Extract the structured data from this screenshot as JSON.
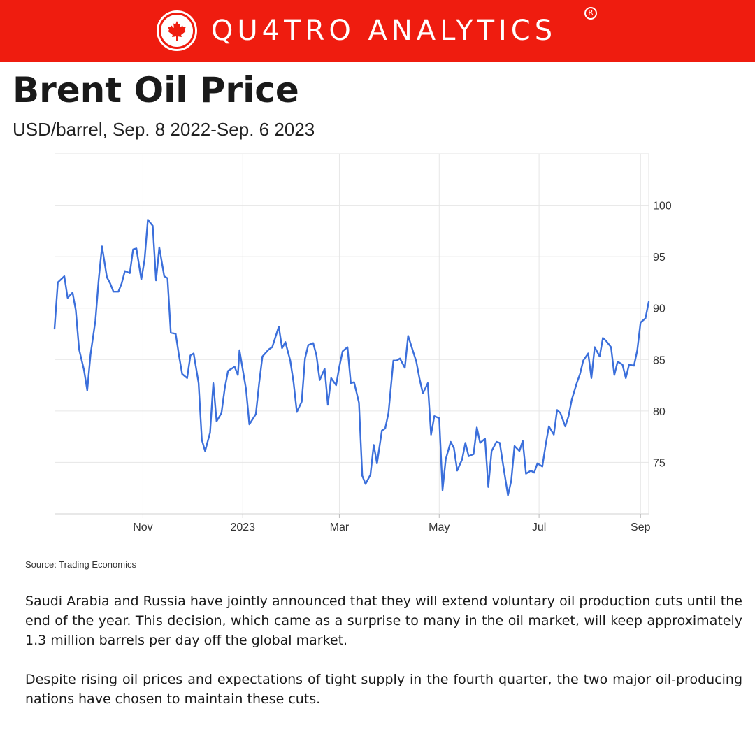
{
  "brand": {
    "name": "QU4TRO ANALYTICS",
    "registered_mark": "R",
    "accent_color": "#ef1c0f"
  },
  "title": "Brent Oil Price",
  "subtitle": "USD/barrel, Sep. 8 2022-Sep. 6 2023",
  "source": "Source: Trading Economics",
  "paragraphs": [
    "Saudi Arabia and Russia have jointly announced that they will extend voluntary oil production cuts until the end of the year. This decision, which came as a surprise to many in the oil market, will keep approximately 1.3 million barrels per day off the global market.",
    "Despite rising oil prices and expectations of tight supply in the fourth quarter, the two major oil-producing nations have chosen to maintain these cuts."
  ],
  "chart_data": {
    "type": "line",
    "x_range": [
      "2022-09-08",
      "2023-09-06"
    ],
    "ylim": [
      70,
      105
    ],
    "y_ticks": [
      75,
      80,
      85,
      90,
      95,
      100
    ],
    "x_ticks": [
      {
        "date": "2022-11-01",
        "label": "Nov"
      },
      {
        "date": "2023-01-01",
        "label": "2023"
      },
      {
        "date": "2023-03-01",
        "label": "Mar"
      },
      {
        "date": "2023-05-01",
        "label": "May"
      },
      {
        "date": "2023-07-01",
        "label": "Jul"
      },
      {
        "date": "2023-09-01",
        "label": "Sep"
      }
    ],
    "grid": true,
    "y_axis_side": "right",
    "line_color": "#3b6fdb",
    "series": [
      {
        "points": [
          [
            "2022-09-08",
            88.0
          ],
          [
            "2022-09-10",
            92.5
          ],
          [
            "2022-09-12",
            92.8
          ],
          [
            "2022-09-14",
            93.1
          ],
          [
            "2022-09-16",
            91.0
          ],
          [
            "2022-09-19",
            91.5
          ],
          [
            "2022-09-21",
            89.8
          ],
          [
            "2022-09-23",
            86.0
          ],
          [
            "2022-09-26",
            84.0
          ],
          [
            "2022-09-28",
            82.0
          ],
          [
            "2022-09-30",
            85.5
          ],
          [
            "2022-10-03",
            88.8
          ],
          [
            "2022-10-05",
            92.8
          ],
          [
            "2022-10-07",
            96.0
          ],
          [
            "2022-10-10",
            93.0
          ],
          [
            "2022-10-12",
            92.4
          ],
          [
            "2022-10-14",
            91.6
          ],
          [
            "2022-10-17",
            91.6
          ],
          [
            "2022-10-19",
            92.4
          ],
          [
            "2022-10-21",
            93.6
          ],
          [
            "2022-10-24",
            93.4
          ],
          [
            "2022-10-26",
            95.7
          ],
          [
            "2022-10-28",
            95.8
          ],
          [
            "2022-10-31",
            92.8
          ],
          [
            "2022-11-02",
            94.7
          ],
          [
            "2022-11-04",
            98.6
          ],
          [
            "2022-11-07",
            98.0
          ],
          [
            "2022-11-09",
            92.7
          ],
          [
            "2022-11-11",
            95.9
          ],
          [
            "2022-11-14",
            93.1
          ],
          [
            "2022-11-16",
            92.9
          ],
          [
            "2022-11-18",
            87.6
          ],
          [
            "2022-11-21",
            87.5
          ],
          [
            "2022-11-23",
            85.4
          ],
          [
            "2022-11-25",
            83.6
          ],
          [
            "2022-11-28",
            83.2
          ],
          [
            "2022-11-30",
            85.4
          ],
          [
            "2022-12-02",
            85.6
          ],
          [
            "2022-12-05",
            82.7
          ],
          [
            "2022-12-07",
            77.2
          ],
          [
            "2022-12-09",
            76.1
          ],
          [
            "2022-12-12",
            77.9
          ],
          [
            "2022-12-14",
            82.7
          ],
          [
            "2022-12-16",
            79.0
          ],
          [
            "2022-12-19",
            79.8
          ],
          [
            "2022-12-21",
            82.2
          ],
          [
            "2022-12-23",
            83.9
          ],
          [
            "2022-12-27",
            84.3
          ],
          [
            "2022-12-29",
            83.5
          ],
          [
            "2022-12-30",
            85.9
          ],
          [
            "2023-01-03",
            82.1
          ],
          [
            "2023-01-05",
            78.7
          ],
          [
            "2023-01-09",
            79.7
          ],
          [
            "2023-01-11",
            82.7
          ],
          [
            "2023-01-13",
            85.3
          ],
          [
            "2023-01-17",
            86.0
          ],
          [
            "2023-01-19",
            86.2
          ],
          [
            "2023-01-23",
            88.2
          ],
          [
            "2023-01-25",
            86.1
          ],
          [
            "2023-01-27",
            86.7
          ],
          [
            "2023-01-30",
            84.9
          ],
          [
            "2023-02-01",
            82.8
          ],
          [
            "2023-02-03",
            79.9
          ],
          [
            "2023-02-06",
            80.9
          ],
          [
            "2023-02-08",
            85.1
          ],
          [
            "2023-02-10",
            86.4
          ],
          [
            "2023-02-13",
            86.6
          ],
          [
            "2023-02-15",
            85.4
          ],
          [
            "2023-02-17",
            83.0
          ],
          [
            "2023-02-20",
            84.1
          ],
          [
            "2023-02-22",
            80.6
          ],
          [
            "2023-02-24",
            83.2
          ],
          [
            "2023-02-27",
            82.5
          ],
          [
            "2023-03-01",
            84.3
          ],
          [
            "2023-03-03",
            85.8
          ],
          [
            "2023-03-06",
            86.2
          ],
          [
            "2023-03-08",
            82.7
          ],
          [
            "2023-03-10",
            82.8
          ],
          [
            "2023-03-13",
            80.8
          ],
          [
            "2023-03-15",
            73.7
          ],
          [
            "2023-03-17",
            72.9
          ],
          [
            "2023-03-20",
            73.8
          ],
          [
            "2023-03-22",
            76.7
          ],
          [
            "2023-03-24",
            74.9
          ],
          [
            "2023-03-27",
            78.1
          ],
          [
            "2023-03-29",
            78.3
          ],
          [
            "2023-03-31",
            79.8
          ],
          [
            "2023-04-03",
            84.9
          ],
          [
            "2023-04-05",
            84.9
          ],
          [
            "2023-04-07",
            85.1
          ],
          [
            "2023-04-10",
            84.2
          ],
          [
            "2023-04-12",
            87.3
          ],
          [
            "2023-04-14",
            86.3
          ],
          [
            "2023-04-17",
            84.8
          ],
          [
            "2023-04-19",
            83.1
          ],
          [
            "2023-04-21",
            81.7
          ],
          [
            "2023-04-24",
            82.7
          ],
          [
            "2023-04-26",
            77.7
          ],
          [
            "2023-04-28",
            79.5
          ],
          [
            "2023-05-01",
            79.3
          ],
          [
            "2023-05-03",
            72.3
          ],
          [
            "2023-05-05",
            75.3
          ],
          [
            "2023-05-08",
            77.0
          ],
          [
            "2023-05-10",
            76.4
          ],
          [
            "2023-05-12",
            74.2
          ],
          [
            "2023-05-15",
            75.3
          ],
          [
            "2023-05-17",
            76.9
          ],
          [
            "2023-05-19",
            75.6
          ],
          [
            "2023-05-22",
            75.8
          ],
          [
            "2023-05-24",
            78.4
          ],
          [
            "2023-05-26",
            76.9
          ],
          [
            "2023-05-29",
            77.3
          ],
          [
            "2023-05-31",
            72.6
          ],
          [
            "2023-06-02",
            76.1
          ],
          [
            "2023-06-05",
            77.0
          ],
          [
            "2023-06-07",
            76.9
          ],
          [
            "2023-06-09",
            74.8
          ],
          [
            "2023-06-12",
            71.8
          ],
          [
            "2023-06-14",
            73.2
          ],
          [
            "2023-06-16",
            76.6
          ],
          [
            "2023-06-19",
            76.1
          ],
          [
            "2023-06-21",
            77.1
          ],
          [
            "2023-06-23",
            73.9
          ],
          [
            "2023-06-26",
            74.2
          ],
          [
            "2023-06-28",
            74.0
          ],
          [
            "2023-06-30",
            74.9
          ],
          [
            "2023-07-03",
            74.6
          ],
          [
            "2023-07-05",
            76.7
          ],
          [
            "2023-07-07",
            78.5
          ],
          [
            "2023-07-10",
            77.7
          ],
          [
            "2023-07-12",
            80.1
          ],
          [
            "2023-07-14",
            79.8
          ],
          [
            "2023-07-17",
            78.5
          ],
          [
            "2023-07-19",
            79.5
          ],
          [
            "2023-07-21",
            81.1
          ],
          [
            "2023-07-24",
            82.7
          ],
          [
            "2023-07-26",
            83.6
          ],
          [
            "2023-07-28",
            84.9
          ],
          [
            "2023-07-31",
            85.6
          ],
          [
            "2023-08-02",
            83.2
          ],
          [
            "2023-08-04",
            86.2
          ],
          [
            "2023-08-07",
            85.3
          ],
          [
            "2023-08-09",
            87.1
          ],
          [
            "2023-08-11",
            86.8
          ],
          [
            "2023-08-14",
            86.2
          ],
          [
            "2023-08-16",
            83.5
          ],
          [
            "2023-08-18",
            84.8
          ],
          [
            "2023-08-21",
            84.5
          ],
          [
            "2023-08-23",
            83.2
          ],
          [
            "2023-08-25",
            84.5
          ],
          [
            "2023-08-28",
            84.4
          ],
          [
            "2023-08-30",
            85.9
          ],
          [
            "2023-09-01",
            88.6
          ],
          [
            "2023-09-04",
            89.0
          ],
          [
            "2023-09-06",
            90.6
          ]
        ]
      }
    ]
  }
}
